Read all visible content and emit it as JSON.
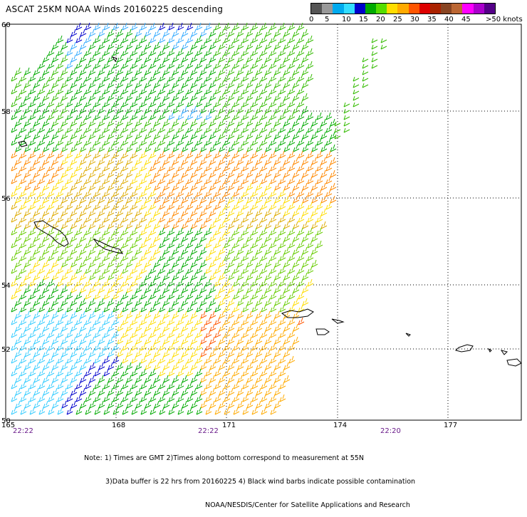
{
  "title": "ASCAT 25KM NOAA Winds 20160225 descending",
  "legend": {
    "colors": [
      "#555555",
      "#999999",
      "#00aaee",
      "#33ddff",
      "#0000cc",
      "#00aa00",
      "#55dd00",
      "#ffdd00",
      "#ffaa00",
      "#ff5500",
      "#dd0000",
      "#aa2200",
      "#884422",
      "#bb6633",
      "#ff00ff",
      "#aa00cc",
      "#550088"
    ],
    "labels": [
      "0",
      "5",
      "10",
      "15",
      "20",
      "25",
      "30",
      "35",
      "40",
      "45",
      ">50 knots"
    ]
  },
  "map": {
    "lat_labels": [
      "60",
      "58",
      "56",
      "54",
      "52",
      "50"
    ],
    "lon_labels": [
      "165",
      "168",
      "171",
      "174",
      "177"
    ],
    "times": [
      "22:22",
      "22:22",
      "22:20"
    ]
  },
  "note": {
    "line1": "Note: 1) Times are GMT 2)Times along bottom correspond to measurement at 55N",
    "line2": "3)Data buffer is 22 hrs from 20160225 4) Black wind barbs indicate possible contamination",
    "line3": "NOAA/NESDIS/Center for Satellite Applications and Research"
  }
}
